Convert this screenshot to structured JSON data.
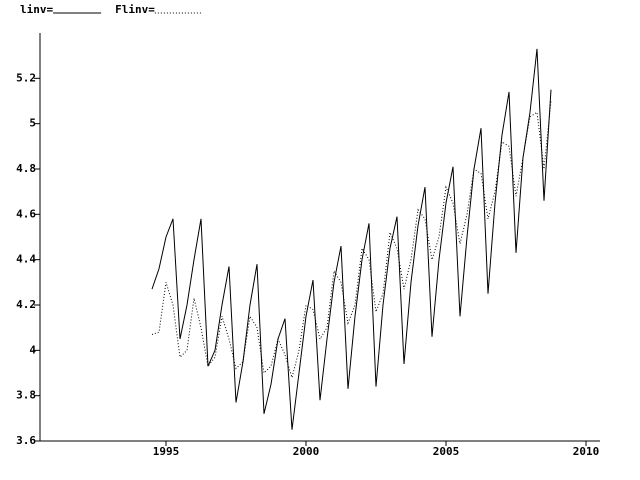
{
  "chart_data": {
    "type": "line",
    "x": [
      1994.5,
      1994.75,
      1995,
      1995.25,
      1995.5,
      1995.75,
      1996,
      1996.25,
      1996.5,
      1996.75,
      1997,
      1997.25,
      1997.5,
      1997.75,
      1998,
      1998.25,
      1998.5,
      1998.75,
      1999,
      1999.25,
      1999.5,
      1999.75,
      2000,
      2000.25,
      2000.5,
      2000.75,
      2001,
      2001.25,
      2001.5,
      2001.75,
      2002,
      2002.25,
      2002.5,
      2002.75,
      2003,
      2003.25,
      2003.5,
      2003.75,
      2004,
      2004.25,
      2004.5,
      2004.75,
      2005,
      2005.25,
      2005.5,
      2005.75,
      2006,
      2006.25,
      2006.5,
      2006.75,
      2007,
      2007.25,
      2007.5,
      2007.75,
      2008,
      2008.25,
      2008.5,
      2008.75
    ],
    "series": [
      {
        "name": "linv=",
        "color": "#000000",
        "dash": "solid",
        "values": [
          4.27,
          4.36,
          4.5,
          4.58,
          4.05,
          4.2,
          4.4,
          4.58,
          3.93,
          4.0,
          4.2,
          4.37,
          3.77,
          3.95,
          4.2,
          4.38,
          3.72,
          3.85,
          4.05,
          4.14,
          3.65,
          3.9,
          4.15,
          4.31,
          3.78,
          4.05,
          4.3,
          4.46,
          3.83,
          4.15,
          4.4,
          4.56,
          3.84,
          4.2,
          4.45,
          4.59,
          3.94,
          4.3,
          4.55,
          4.72,
          4.06,
          4.4,
          4.65,
          4.81,
          4.15,
          4.5,
          4.8,
          4.98,
          4.25,
          4.65,
          4.95,
          5.14,
          4.43,
          4.85,
          5.05,
          5.33,
          4.66,
          5.15
        ]
      },
      {
        "name": "Flinv=",
        "color": "#000000",
        "dash": "dotted",
        "values": [
          4.07,
          4.08,
          4.3,
          4.2,
          3.97,
          4.0,
          4.23,
          4.1,
          3.93,
          3.97,
          4.15,
          4.05,
          3.92,
          3.95,
          4.15,
          4.1,
          3.9,
          3.93,
          4.05,
          3.98,
          3.88,
          4.0,
          4.2,
          4.18,
          4.05,
          4.1,
          4.35,
          4.3,
          4.12,
          4.2,
          4.45,
          4.4,
          4.17,
          4.25,
          4.52,
          4.45,
          4.27,
          4.4,
          4.62,
          4.58,
          4.4,
          4.5,
          4.72,
          4.65,
          4.47,
          4.6,
          4.8,
          4.78,
          4.58,
          4.7,
          4.92,
          4.9,
          4.68,
          4.85,
          5.03,
          5.05,
          4.8,
          5.1
        ]
      }
    ],
    "xlim": [
      1990.5,
      2010.5
    ],
    "xticks": [
      1995,
      2000,
      2005,
      2010
    ],
    "ylim": [
      3.6,
      5.4
    ],
    "yticks": [
      3.6,
      3.8,
      4,
      4.2,
      4.4,
      4.6,
      4.8,
      5,
      5.2
    ],
    "grid": false,
    "legend": "top-left"
  }
}
